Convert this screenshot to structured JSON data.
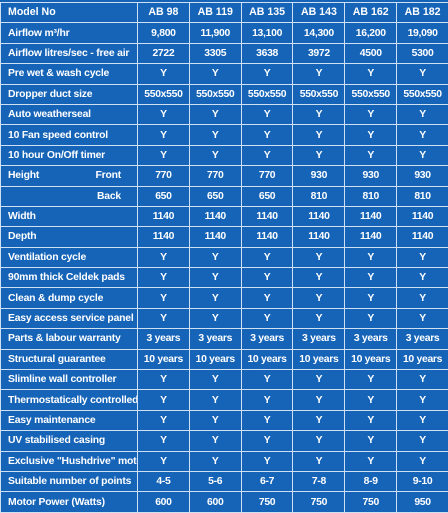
{
  "table": {
    "header_label": "Model No",
    "models": [
      "AB 98",
      "AB 119",
      "AB 135",
      "AB 143",
      "AB 162",
      "AB 182"
    ],
    "rows": [
      {
        "label": "Airflow m³/hr",
        "values": [
          "9,800",
          "11,900",
          "13,100",
          "14,300",
          "16,200",
          "19,090"
        ]
      },
      {
        "label": "Airflow litres/sec - free air",
        "values": [
          "2722",
          "3305",
          "3638",
          "3972",
          "4500",
          "5300"
        ]
      },
      {
        "label": "Pre wet & wash cycle",
        "values": [
          "Y",
          "Y",
          "Y",
          "Y",
          "Y",
          "Y"
        ]
      },
      {
        "label": "Dropper duct size",
        "values": [
          "550x550",
          "550x550",
          "550x550",
          "550x550",
          "550x550",
          "550x550"
        ]
      },
      {
        "label": "Auto weatherseal",
        "values": [
          "Y",
          "Y",
          "Y",
          "Y",
          "Y",
          "Y"
        ]
      },
      {
        "label": "10 Fan speed control",
        "values": [
          "Y",
          "Y",
          "Y",
          "Y",
          "Y",
          "Y"
        ]
      },
      {
        "label": "10 hour On/Off timer",
        "values": [
          "Y",
          "Y",
          "Y",
          "Y",
          "Y",
          "Y"
        ]
      },
      {
        "label": "Height",
        "sub": "Front",
        "values": [
          "770",
          "770",
          "770",
          "930",
          "930",
          "930"
        ]
      },
      {
        "label": "",
        "sub": "Back",
        "values": [
          "650",
          "650",
          "650",
          "810",
          "810",
          "810"
        ]
      },
      {
        "label": "Width",
        "values": [
          "1140",
          "1140",
          "1140",
          "1140",
          "1140",
          "1140"
        ]
      },
      {
        "label": "Depth",
        "values": [
          "1140",
          "1140",
          "1140",
          "1140",
          "1140",
          "1140"
        ]
      },
      {
        "label": "Ventilation cycle",
        "values": [
          "Y",
          "Y",
          "Y",
          "Y",
          "Y",
          "Y"
        ]
      },
      {
        "label": "90mm thick Celdek pads",
        "values": [
          "Y",
          "Y",
          "Y",
          "Y",
          "Y",
          "Y"
        ]
      },
      {
        "label": "Clean & dump cycle",
        "values": [
          "Y",
          "Y",
          "Y",
          "Y",
          "Y",
          "Y"
        ]
      },
      {
        "label": "Easy access service panel",
        "values": [
          "Y",
          "Y",
          "Y",
          "Y",
          "Y",
          "Y"
        ]
      },
      {
        "label": "Parts & labour warranty",
        "values": [
          "3 years",
          "3 years",
          "3 years",
          "3 years",
          "3 years",
          "3 years"
        ]
      },
      {
        "label": "Structural guarantee",
        "values": [
          "10 years",
          "10 years",
          "10 years",
          "10 years",
          "10 years",
          "10 years"
        ]
      },
      {
        "label": "Slimline wall controller",
        "values": [
          "Y",
          "Y",
          "Y",
          "Y",
          "Y",
          "Y"
        ]
      },
      {
        "label": "Thermostatically controlled",
        "values": [
          "Y",
          "Y",
          "Y",
          "Y",
          "Y",
          "Y"
        ]
      },
      {
        "label": "Easy maintenance",
        "values": [
          "Y",
          "Y",
          "Y",
          "Y",
          "Y",
          "Y"
        ]
      },
      {
        "label": "UV stabilised casing",
        "values": [
          "Y",
          "Y",
          "Y",
          "Y",
          "Y",
          "Y"
        ]
      },
      {
        "label": "Exclusive \"Hushdrive\" motor",
        "values": [
          "Y",
          "Y",
          "Y",
          "Y",
          "Y",
          "Y"
        ]
      },
      {
        "label": "Suitable number of points",
        "values": [
          "4-5",
          "5-6",
          "6-7",
          "7-8",
          "8-9",
          "9-10"
        ]
      },
      {
        "label": "Motor Power (Watts)",
        "values": [
          "600",
          "600",
          "750",
          "750",
          "750",
          "950"
        ]
      }
    ]
  }
}
